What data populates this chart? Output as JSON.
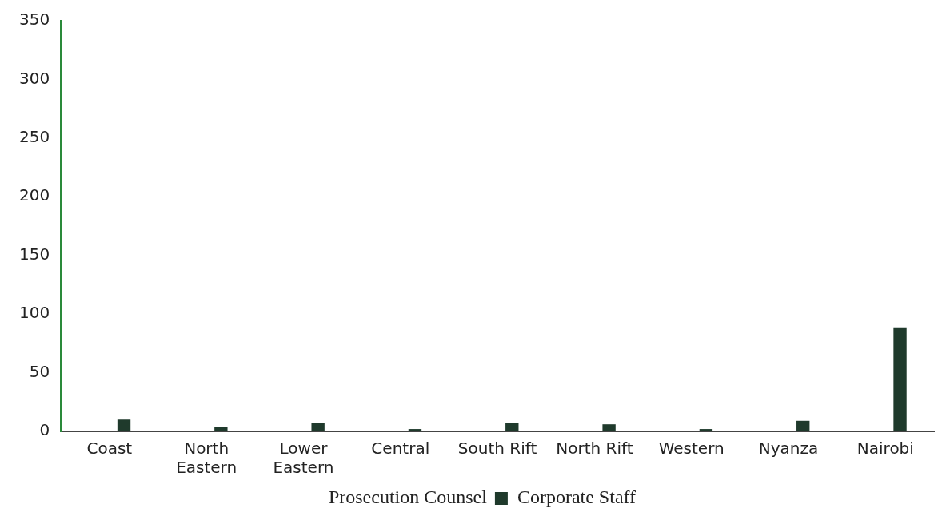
{
  "chart_data": {
    "type": "bar",
    "categories": [
      "Coast",
      "North Eastern",
      "Lower Eastern",
      "Central",
      "South Rift",
      "North Rift",
      "Western",
      "Nyanza",
      "Nairobi"
    ],
    "series": [
      {
        "name": "Prosecution Counsel",
        "values": [
          0,
          0,
          0,
          0,
          0,
          0,
          0,
          0,
          0
        ]
      },
      {
        "name": "Corporate Staff",
        "color": "#1f3a2c",
        "values": [
          10,
          4,
          7,
          2,
          7,
          6,
          2,
          9,
          88
        ]
      }
    ],
    "ylim": [
      0,
      350
    ],
    "yticks": [
      0,
      50,
      100,
      150,
      200,
      250,
      300,
      350
    ],
    "grid": false,
    "legend": "bottom"
  }
}
